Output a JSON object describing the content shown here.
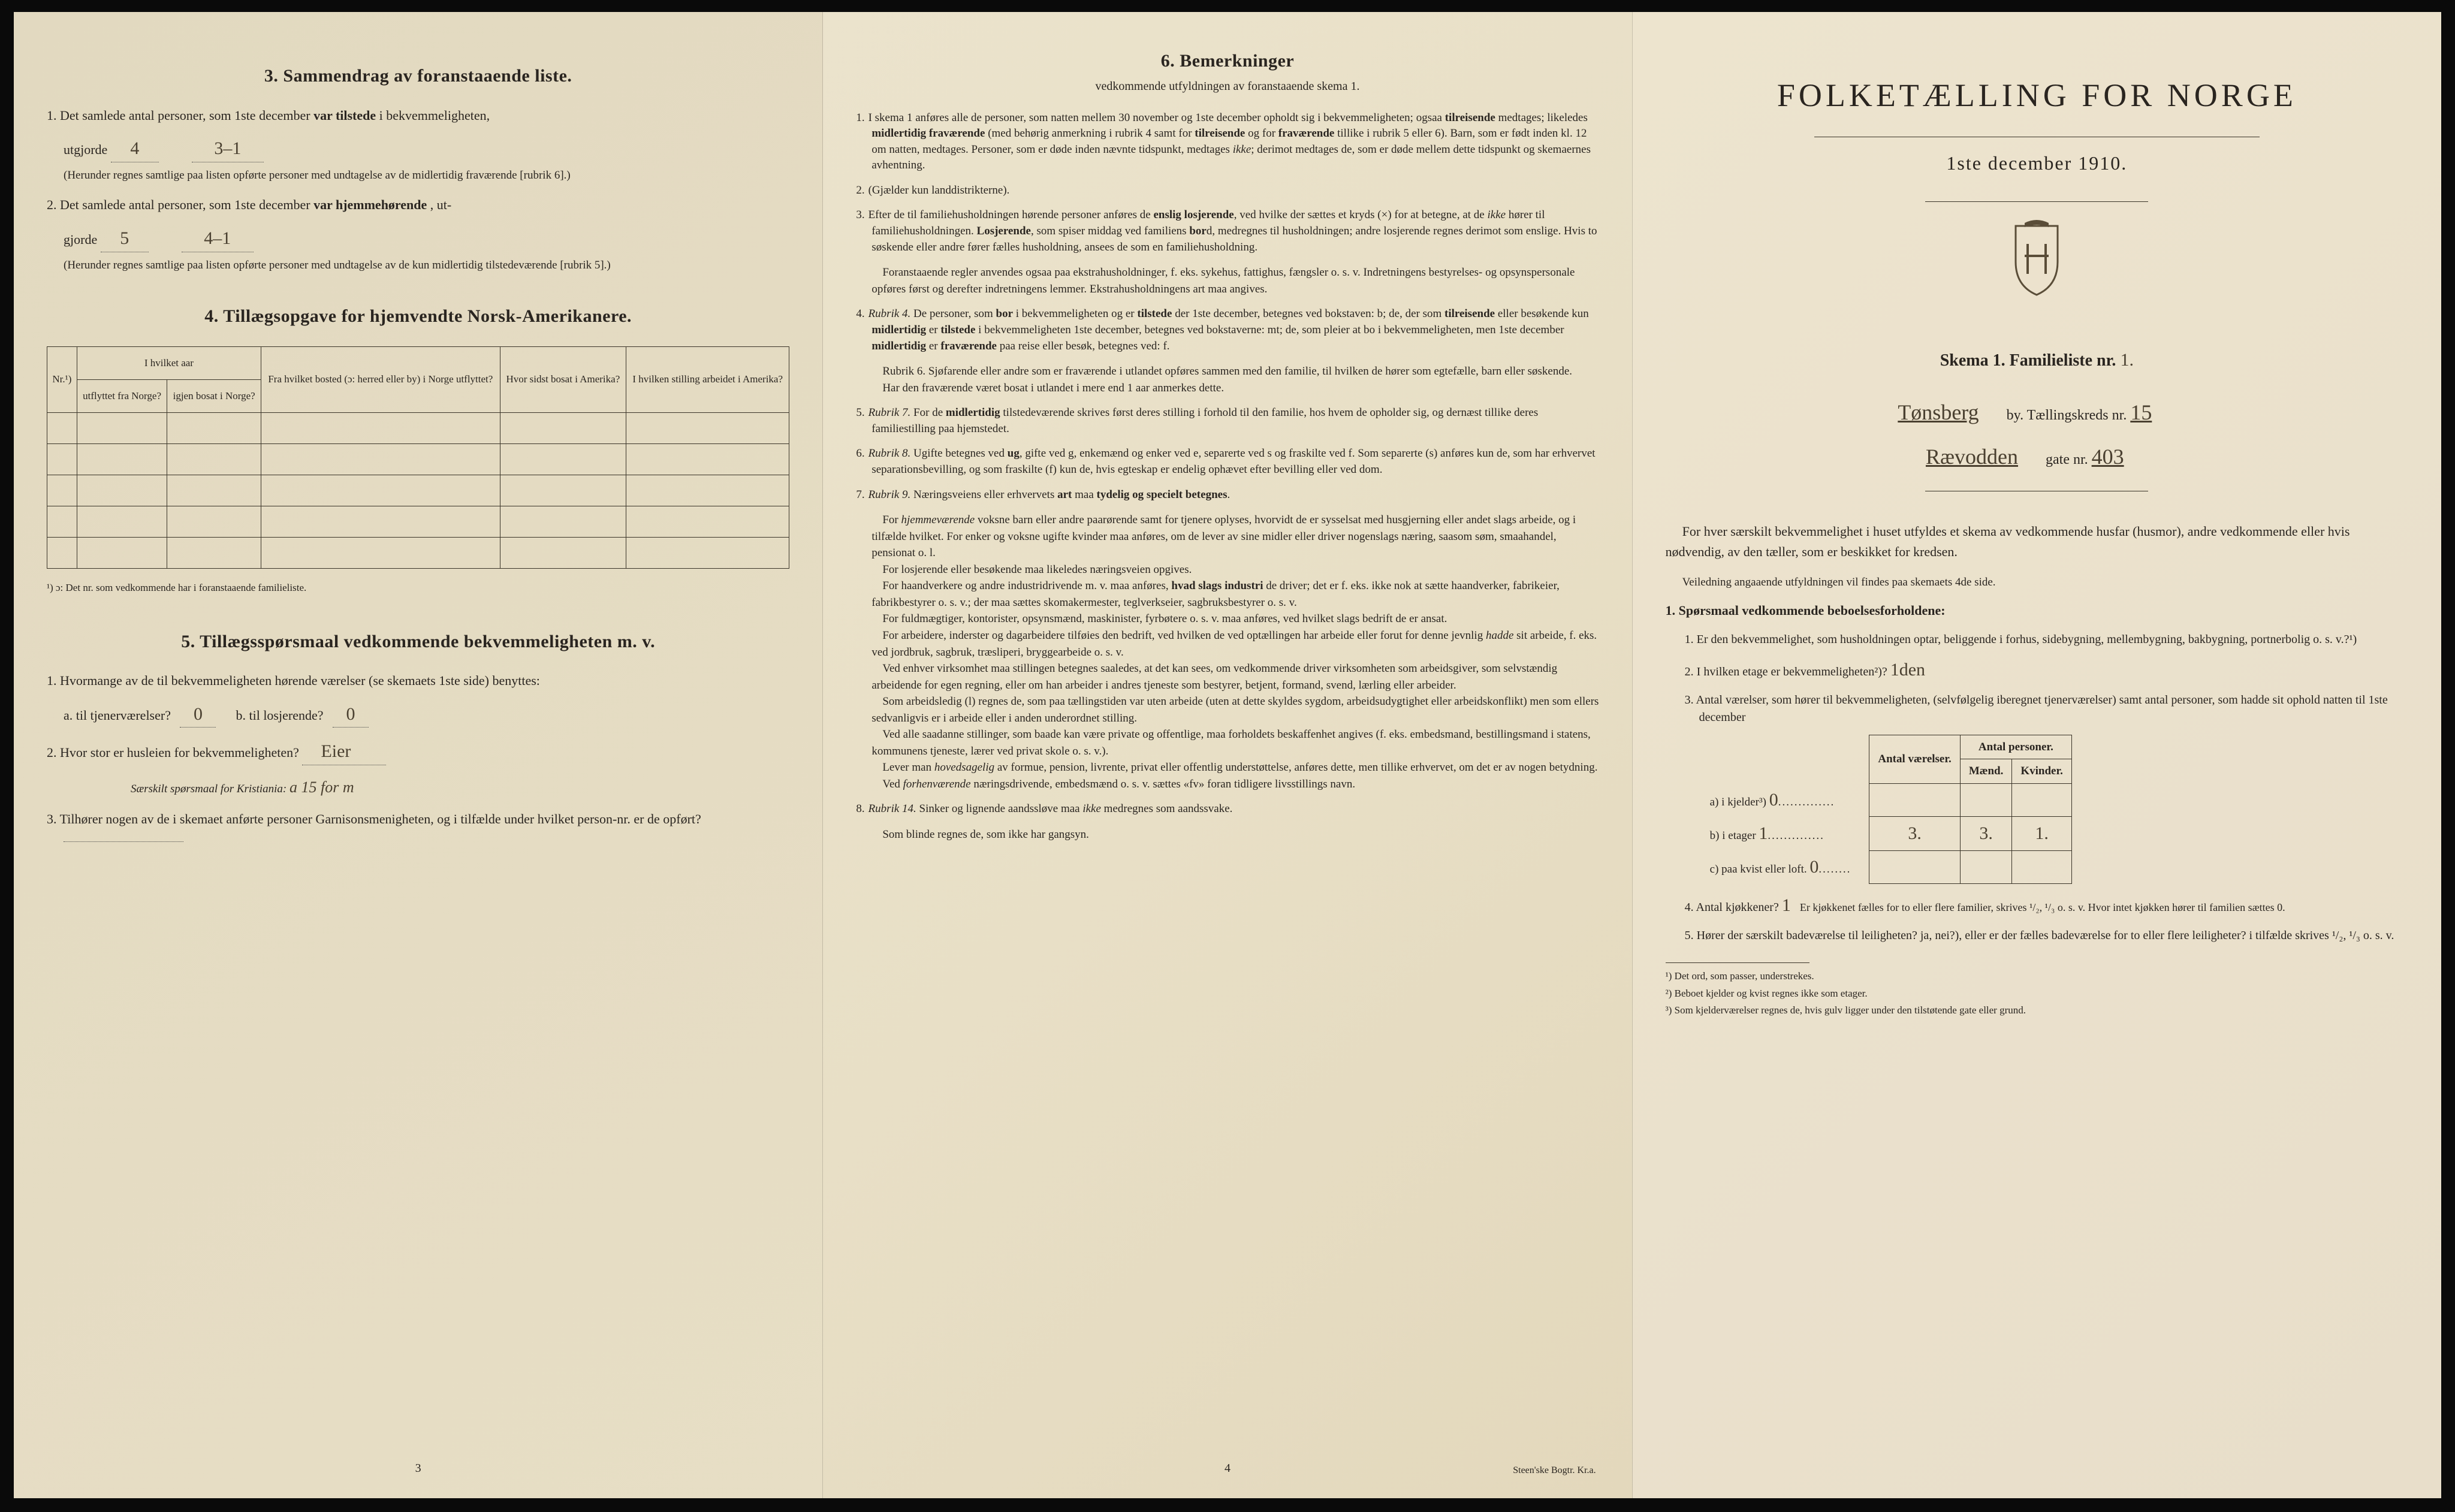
{
  "colors": {
    "paper": "#ebe3cc",
    "ink": "#2a2520",
    "handwriting": "#4a4030",
    "border": "#3a3428",
    "background": "#0a0a0a"
  },
  "panel1": {
    "sec3": {
      "title": "3.   Sammendrag av foranstaaende liste.",
      "item1_pre": "1.  Det samlede antal personer, som 1ste december",
      "item1_bold": "var tilstede",
      "item1_post": "i bekvemmeligheten,",
      "item1_line2": "utgjorde",
      "item1_val1": "4",
      "item1_val2": "3–1",
      "item1_note": "(Herunder regnes samtlige paa listen opførte personer med undtagelse av de midlertidig fraværende [rubrik 6].)",
      "item2_pre": "2.  Det samlede antal personer, som 1ste december",
      "item2_bold": "var hjemmehørende",
      "item2_post": ", ut-",
      "item2_line2": "gjorde",
      "item2_val1": "5",
      "item2_val2": "4–1",
      "item2_note": "(Herunder regnes samtlige paa listen opførte personer med undtagelse av de kun midlertidig tilstedeværende [rubrik 5].)"
    },
    "sec4": {
      "title": "4.   Tillægsopgave for hjemvendte Norsk-Amerikanere.",
      "col_nr": "Nr.¹)",
      "col_year": "I hvilket aar",
      "col_from": "utflyttet fra Norge?",
      "col_back": "igjen bosat i Norge?",
      "col_place": "Fra hvilket bosted (ɔ: herred eller by) i Norge utflyttet?",
      "col_where": "Hvor sidst bosat i Amerika?",
      "col_job": "I hvilken stilling arbeidet i Amerika?",
      "footnote": "¹) ɔ: Det nr. som vedkommende har i foranstaaende familieliste."
    },
    "sec5": {
      "title": "5.   Tillægsspørsmaal vedkommende bekvemmeligheten m. v.",
      "q1": "1.  Hvormange av de til bekvemmeligheten hørende værelser (se skemaets 1ste side) benyttes:",
      "q1a_label": "a.  til tjenerværelser?",
      "q1a_val": "0",
      "q1b_label": "b.  til losjerende?",
      "q1b_val": "0",
      "q2": "2.  Hvor stor er husleien for bekvemmeligheten?",
      "q2_val": "Eier",
      "q2_note_label": "Særskilt spørsmaal for Kristiania:",
      "q2_note_val": "a 15 for m",
      "q3": "3.  Tilhører nogen av de i skemaet anførte personer Garnisonsmenigheten, og i tilfælde under hvilket person-nr. er de opført?",
      "q3_val": ""
    },
    "page_num": "3"
  },
  "panel2": {
    "title": "6.   Bemerkninger",
    "subtitle": "vedkommende utfyldningen av foranstaaende skema 1.",
    "items": [
      {
        "n": "1.",
        "text": "I skema 1 anføres alle de personer, som natten mellem 30 november og 1ste december opholdt sig i bekvemmeligheten; ogsaa tilreisende medtages; likeledes midlertidig fraværende (med behørig anmerkning i rubrik 4 samt for tilreisende og for fraværende tillike i rubrik 5 eller 6). Barn, som er født inden kl. 12 om natten, medtages. Personer, som er døde inden nævnte tidspunkt, medtages ikke; derimot medtages de, som er døde mellem dette tidspunkt og skemaernes avhentning."
      },
      {
        "n": "2.",
        "text": "(Gjælder kun landdistrikterne)."
      },
      {
        "n": "3.",
        "text": "Efter de til familiehusholdningen hørende personer anføres de enslig losjerende, ved hvilke der sættes et kryds (×) for at betegne, at de ikke hører til familiehusholdningen. Losjerende, som spiser middag ved familiens bord, medregnes til husholdningen; andre losjerende regnes derimot som enslige. Hvis to søskende eller andre fører fælles husholdning, ansees de som en familiehusholdning.",
        "extra": "Foranstaaende regler anvendes ogsaa paa ekstrahusholdninger, f. eks. sykehus, fattighus, fængsler o. s. v. Indretningens bestyrelses- og opsynspersonale opføres først og derefter indretningens lemmer. Ekstrahusholdningens art maa angives."
      },
      {
        "n": "4.",
        "text": "Rubrik 4. De personer, som bor i bekvemmeligheten og er tilstede der 1ste december, betegnes ved bokstaven: b; de, der som tilreisende eller besøkende kun midlertidig er tilstede i bekvemmeligheten 1ste december, betegnes ved bokstaverne: mt; de, som pleier at bo i bekvemmeligheten, men 1ste december midlertidig er fraværende paa reise eller besøk, betegnes ved: f.",
        "extra": "Rubrik 6. Sjøfarende eller andre som er fraværende i utlandet opføres sammen med den familie, til hvilken de hører som egtefælle, barn eller søskende.",
        "extra2": "Har den fraværende været bosat i utlandet i mere end 1 aar anmerkes dette."
      },
      {
        "n": "5.",
        "text": "Rubrik 7. For de midlertidig tilstedeværende skrives først deres stilling i forhold til den familie, hos hvem de opholder sig, og dernæst tillike deres familiestilling paa hjemstedet."
      },
      {
        "n": "6.",
        "text": "Rubrik 8. Ugifte betegnes ved ug, gifte ved g, enkemænd og enker ved e, separerte ved s og fraskilte ved f. Som separerte (s) anføres kun de, som har erhvervet separationsbevilling, og som fraskilte (f) kun de, hvis egteskap er endelig ophævet efter bevilling eller ved dom."
      },
      {
        "n": "7.",
        "text": "Rubrik 9. Næringsveiens eller erhvervets art maa tydelig og specielt betegnes.",
        "paras": [
          "For hjemmeværende voksne barn eller andre paarørende samt for tjenere oplyses, hvorvidt de er sysselsat med husgjerning eller andet slags arbeide, og i tilfælde hvilket. For enker og voksne ugifte kvinder maa anføres, om de lever av sine midler eller driver nogenslags næring, saasom søm, smaahandel, pensionat o. l.",
          "For losjerende eller besøkende maa likeledes næringsveien opgives.",
          "For haandverkere og andre industridrivende m. v. maa anføres, hvad slags industri de driver; det er f. eks. ikke nok at sætte haandverker, fabrikeier, fabrikbestyrer o. s. v.; der maa sættes skomakermester, teglverkseier, sagbruksbestyrer o. s. v.",
          "For fuldmægtiger, kontorister, opsynsmænd, maskinister, fyrbøtere o. s. v. maa anføres, ved hvilket slags bedrift de er ansat.",
          "For arbeidere, inderster og dagarbeidere tilføies den bedrift, ved hvilken de ved optællingen har arbeide eller forut for denne jevnlig hadde sit arbeide, f. eks. ved jordbruk, sagbruk, træsliperi, bryggearbeide o. s. v.",
          "Ved enhver virksomhet maa stillingen betegnes saaledes, at det kan sees, om vedkommende driver virksomheten som arbeidsgiver, som selvstændig arbeidende for egen regning, eller om han arbeider i andres tjeneste som bestyrer, betjent, formand, svend, lærling eller arbeider.",
          "Som arbeidsledig (l) regnes de, som paa tællingstiden var uten arbeide (uten at dette skyldes sygdom, arbeidsudygtighet eller arbeidskonflikt) men som ellers sedvanligvis er i arbeide eller i anden underordnet stilling.",
          "Ved alle saadanne stillinger, som baade kan være private og offentlige, maa forholdets beskaffenhet angives (f. eks. embedsmand, bestillingsmand i statens, kommunens tjeneste, lærer ved privat skole o. s. v.).",
          "Lever man hovedsagelig av formue, pension, livrente, privat eller offentlig understøttelse, anføres dette, men tillike erhvervet, om det er av nogen betydning.",
          "Ved forhenværende næringsdrivende, embedsmænd o. s. v. sættes «fv» foran tidligere livsstillings navn."
        ]
      },
      {
        "n": "8.",
        "text": "Rubrik 14. Sinker og lignende aandssløve maa ikke medregnes som aandssvake.",
        "extra": "Som blinde regnes de, som ikke har gangsyn."
      }
    ],
    "page_num": "4",
    "printer": "Steen'ske Bogtr.  Kr.a."
  },
  "panel3": {
    "title": "FOLKETÆLLING FOR NORGE",
    "date": "1ste december 1910.",
    "skema": "Skema 1.   Familieliste nr.",
    "skema_val": "1.",
    "city_val": "Tønsberg",
    "city_unit": "by.   Tællingskreds nr.",
    "kreds_val": "15",
    "street_val": "Rævodden",
    "gate_label": "gate nr.",
    "gate_val": "403",
    "intro": "For hver særskilt bekvemmelighet i huset utfyldes et skema av vedkommende husfar (husmor), andre vedkommende eller hvis nødvendig, av den tæller, som er beskikket for kredsen.",
    "veil": "Veiledning angaaende utfyldningen vil findes paa skemaets 4de side.",
    "q_header": "1.  Spørsmaal vedkommende beboelsesforholdene:",
    "q1": "1.  Er den bekvemmelighet, som husholdningen optar, beliggende i forhus, sidebygning, mellembygning, bakbygning, portnerbolig o. s. v.?¹)",
    "q2": "2.  I hvilken etage er bekvemmeligheten²)?",
    "q2_val": "1den",
    "q3": "3.  Antal værelser, som hører til bekvemmeligheten, (selvfølgelig iberegnet tjenerværelser) samt antal personer, som hadde sit ophold natten til 1ste december",
    "table": {
      "h_rooms": "Antal værelser.",
      "h_persons": "Antal personer.",
      "h_m": "Mænd.",
      "h_k": "Kvinder.",
      "row_a": "a) i kjelder³)",
      "row_a_dots": "0",
      "row_b": "b) i etager",
      "row_b_dots": "1",
      "row_b_r": "3.",
      "row_b_m": "3.",
      "row_b_k": "1.",
      "row_c": "c) paa kvist eller loft.",
      "row_c_dots": "0"
    },
    "q4_pre": "4.  Antal kjøkkener?",
    "q4_val": "1",
    "q4_post": "Er kjøkkenet fælles for to eller flere familier, skrives ¹/₂, ¹/₃ o. s. v.   Hvor intet kjøkken hører til familien sættes 0.",
    "q5": "5.  Hører der særskilt badeværelse til leiligheten?  ja, nei?), eller er der fælles badeværelse for to eller flere leiligheter?  i tilfælde skrives ¹/₂, ¹/₃ o. s. v.",
    "fn1": "¹) Det ord, som passer, understrekes.",
    "fn2": "²) Beboet kjelder og kvist regnes ikke som etager.",
    "fn3": "³) Som kjelderværelser regnes de, hvis gulv ligger under den tilstøtende gate eller grund."
  }
}
